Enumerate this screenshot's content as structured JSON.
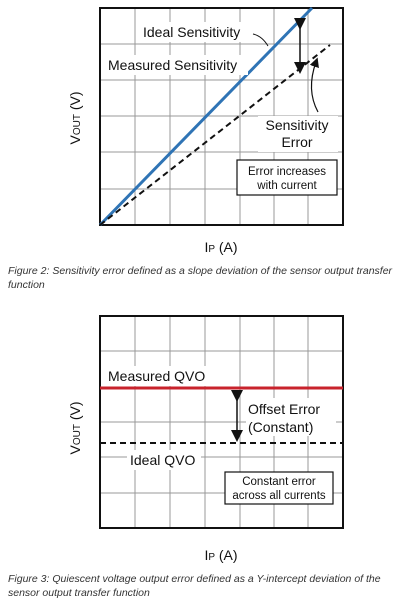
{
  "figure_1": {
    "labels": {
      "ideal": "Ideal Sensitivity",
      "measured": "Measured Sensitivity",
      "error_line1": "Sensitivity",
      "error_line2": "Error",
      "box_line1": "Error increases",
      "box_line2": "with current"
    },
    "y_axis": {
      "main": "V",
      "sub": "OUT",
      "unit": "(V)"
    },
    "x_axis": {
      "main": "I",
      "sub": "P",
      "unit": "(A)"
    },
    "caption": "Figure 2: Sensitivity error defined as a slope deviation of the sensor output transfer function"
  },
  "figure_2": {
    "labels": {
      "measured": "Measured QVO",
      "offset_line1": "Offset Error",
      "offset_line2": "(Constant)",
      "ideal": "Ideal QVO",
      "box_line1": "Constant error",
      "box_line2": "across all currents"
    },
    "y_axis": {
      "main": "V",
      "sub": "OUT",
      "unit": "(V)"
    },
    "x_axis": {
      "main": "I",
      "sub": "P",
      "unit": "(A)"
    },
    "caption": "Figure 3: Quiescent voltage output error defined as a Y-intercept deviation of the sensor output transfer function"
  }
}
